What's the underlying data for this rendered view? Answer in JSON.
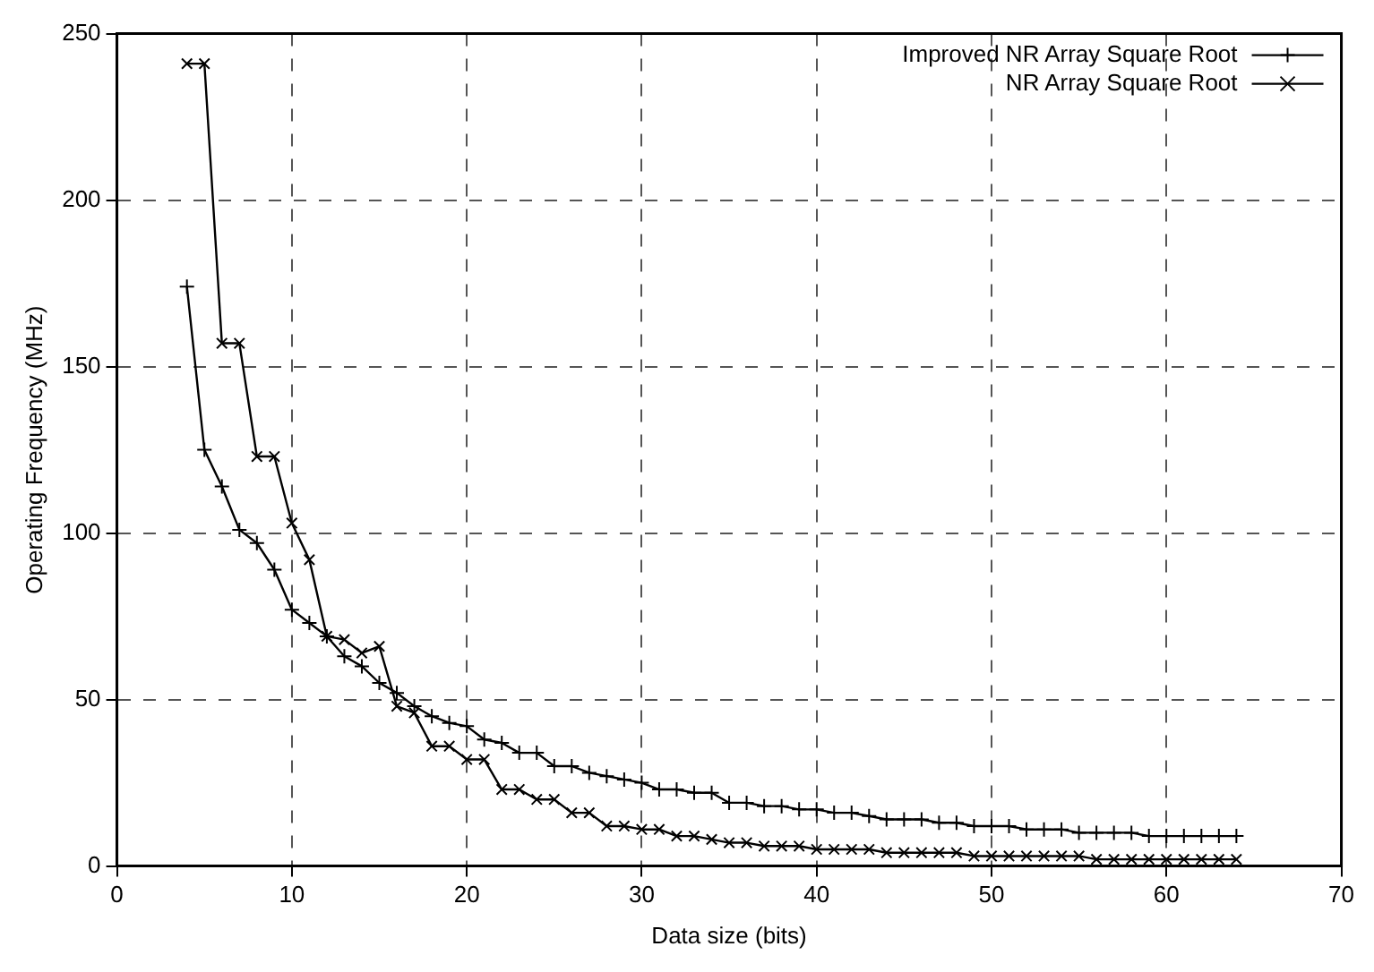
{
  "chart_data": {
    "type": "line",
    "xlabel": "Data size (bits)",
    "ylabel": "Operating Frequency (MHz)",
    "x": [
      4,
      5,
      6,
      7,
      8,
      9,
      10,
      11,
      12,
      13,
      14,
      15,
      16,
      17,
      18,
      19,
      20,
      21,
      22,
      23,
      24,
      25,
      26,
      27,
      28,
      29,
      30,
      31,
      32,
      33,
      34,
      35,
      36,
      37,
      38,
      39,
      40,
      41,
      42,
      43,
      44,
      45,
      46,
      47,
      48,
      49,
      50,
      51,
      52,
      53,
      54,
      55,
      56,
      57,
      58,
      59,
      60,
      61,
      62,
      63,
      64
    ],
    "series": [
      {
        "name": "Improved NR Array Square Root",
        "color": "#000000",
        "marker": "cross",
        "values": [
          174,
          125,
          114,
          101,
          97,
          89,
          77,
          73,
          69,
          63,
          60,
          55,
          52,
          48,
          45,
          43,
          42,
          38,
          37,
          34,
          34,
          30,
          30,
          28,
          27,
          26,
          25,
          23,
          23,
          22,
          22,
          19,
          19,
          18,
          18,
          17,
          17,
          16,
          16,
          15,
          14,
          14,
          14,
          13,
          13,
          12,
          12,
          12,
          11,
          11,
          11,
          10,
          10,
          10,
          10,
          9,
          9,
          9,
          9,
          9,
          9
        ]
      },
      {
        "name": "NR Array Square Root",
        "color": "#000000",
        "marker": "x",
        "values": [
          241,
          241,
          157,
          157,
          123,
          123,
          103,
          92,
          69,
          68,
          64,
          66,
          48,
          46,
          36,
          36,
          32,
          32,
          23,
          23,
          20,
          20,
          16,
          16,
          12,
          12,
          11,
          11,
          9,
          9,
          8,
          7,
          7,
          6,
          6,
          6,
          5,
          5,
          5,
          5,
          4,
          4,
          4,
          4,
          4,
          3,
          3,
          3,
          3,
          3,
          3,
          3,
          2,
          2,
          2,
          2,
          2,
          2,
          2,
          2,
          2
        ]
      }
    ],
    "xlim": [
      0,
      70
    ],
    "xticks": [
      0,
      10,
      20,
      30,
      40,
      50,
      60,
      70
    ],
    "ylim": [
      0,
      250
    ],
    "yticks": [
      0,
      50,
      100,
      150,
      200,
      250
    ],
    "grid": true,
    "legend": "top right",
    "line_style": "solid"
  }
}
